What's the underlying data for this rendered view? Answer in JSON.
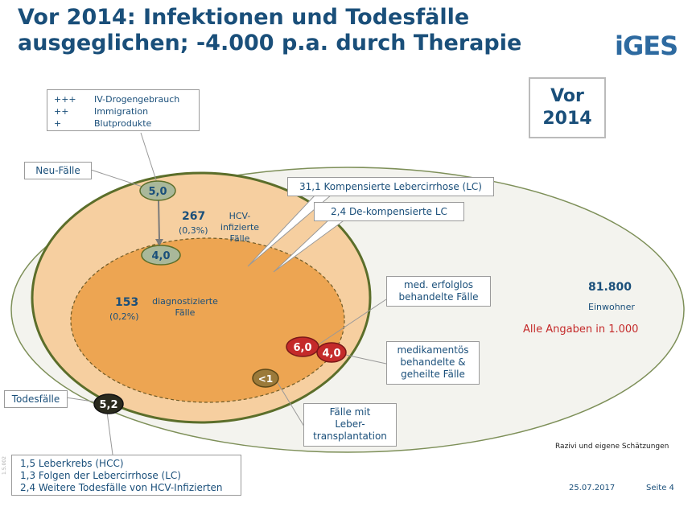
{
  "title": {
    "line1": "Vor 2014: Infektionen und Todesfälle",
    "line2": "ausgeglichen; -4.000 p.a. durch Therapie"
  },
  "logo": "iGES",
  "period_box": {
    "line1": "Vor",
    "line2": "2014"
  },
  "sources_box": {
    "rows": [
      {
        "level": "+++",
        "label": "IV-Drogengebrauch"
      },
      {
        "level": "++",
        "label": "Immigration"
      },
      {
        "level": "+",
        "label": "Blutprodukte"
      }
    ]
  },
  "labels": {
    "neu_faelle": "Neu-Fälle",
    "todesfaelle": "Todesfälle",
    "kompensiert": "31,1 Kompensierte Lebercirrhose (LC)",
    "dekompensiert": "2,4 De-kompensierte LC",
    "erfolglos_line1": "med. erfolglos",
    "erfolglos_line2": "behandelte Fälle",
    "geheilt_line1": "medikamentös",
    "geheilt_line2": "behandelte &",
    "geheilt_line3": "geheilte Fälle",
    "transplant_line1": "Fälle mit",
    "transplant_line2": "Leber-",
    "transplant_line3": "transplantation"
  },
  "population": {
    "hcv_value": "267",
    "hcv_pct": "(0,3%)",
    "hcv_label_line1": "HCV-",
    "hcv_label_line2": "infizierte",
    "hcv_label_line3": "Fälle",
    "diag_value": "153",
    "diag_pct": "(0,2%)",
    "diag_label_line1": "diagnostizierte",
    "diag_label_line2": "Fälle",
    "einwohner_value": "81.800",
    "einwohner_label": "Einwohner",
    "note": "Alle Angaben in 1.000"
  },
  "badges": {
    "neu": "5,0",
    "diagnosed": "4,0",
    "erfolglos": "6,0",
    "geheilt": "4,0",
    "transplant": "<1",
    "tod": "5,2"
  },
  "death_box": {
    "rows": [
      "1,5 Leberkrebs (HCC)",
      "1,3 Folgen der Lebercirrhose (LC)",
      "2,4 Weitere Todesfälle von HCV-Infizierten"
    ]
  },
  "footer": {
    "source": "Razivi und eigene Schätzungen",
    "date": "25.07.2017",
    "page": "Seite 4",
    "code": "1.5.002"
  },
  "colors": {
    "title": "#1a4f7a",
    "outer_fill": "#f3f3ee",
    "hcv_fill": "#f6cfa0",
    "diag_fill": "#eda552",
    "ring": "#5b6e2a",
    "red_badge": "#c42a2a",
    "olive_badge": "#9b7a3a",
    "dark_badge": "#2a2a1e",
    "gray_badge": "#a9b89a"
  }
}
